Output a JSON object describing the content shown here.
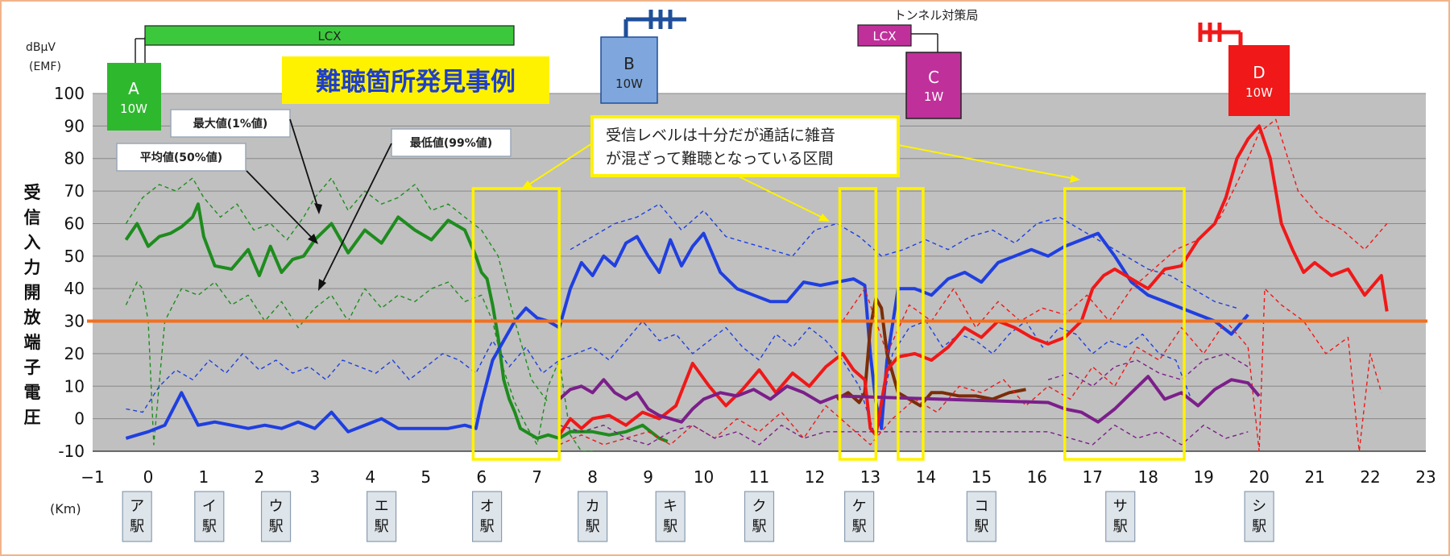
{
  "chart_data": {
    "type": "line",
    "title": "難聴箇所発見事例",
    "y_unit": "dBμV\n(EMF)",
    "ylabel": "受信入力開放端子電圧",
    "x_unit": "(Km)",
    "xlim": [
      -1,
      23
    ],
    "ylim": [
      -10,
      100
    ],
    "x_ticks": [
      -1,
      0,
      1,
      2,
      3,
      4,
      5,
      6,
      7,
      8,
      9,
      10,
      11,
      12,
      13,
      14,
      15,
      16,
      17,
      18,
      19,
      20,
      21,
      22,
      23
    ],
    "y_ticks": [
      -10,
      0,
      10,
      20,
      30,
      40,
      50,
      60,
      70,
      80,
      90,
      100
    ],
    "grid": true,
    "threshold": 30,
    "threshold_color": "#f07020",
    "stations": [
      {
        "name": "ア駅",
        "x": -0.2
      },
      {
        "name": "イ駅",
        "x": 1.1
      },
      {
        "name": "ウ駅",
        "x": 2.3
      },
      {
        "name": "エ駅",
        "x": 4.2
      },
      {
        "name": "オ駅",
        "x": 6.1
      },
      {
        "name": "カ駅",
        "x": 8.0
      },
      {
        "name": "キ駅",
        "x": 9.4
      },
      {
        "name": "ク駅",
        "x": 11.0
      },
      {
        "name": "ケ駅",
        "x": 12.8
      },
      {
        "name": "コ駅",
        "x": 15.0
      },
      {
        "name": "サ駅",
        "x": 17.5
      },
      {
        "name": "シ駅",
        "x": 20.0
      }
    ],
    "base_stations": [
      {
        "name": "A",
        "power": "10W",
        "color": "#2eb82e"
      },
      {
        "name": "B",
        "power": "10W",
        "color": "#7fa7dd"
      },
      {
        "name": "C",
        "power": "1W",
        "color": "#c0309b"
      },
      {
        "name": "D",
        "power": "10W",
        "color": "#f01818"
      }
    ],
    "lcx_labels": [
      "LCX",
      "LCX"
    ],
    "tunnel_label": "トンネル対策局",
    "callouts": {
      "max": "最大値(1%値)",
      "mean": "平均値(50%値)",
      "min": "最低値(99%値)",
      "noise": "受信レベルは十分だが通話に雑音が混ざって難聴となっている区間"
    },
    "highlight_zones": [
      [
        5.85,
        7.4
      ],
      [
        12.45,
        13.1
      ],
      [
        13.5,
        13.95
      ],
      [
        16.5,
        18.65
      ]
    ],
    "series": [
      {
        "station": "A",
        "stat": "mean",
        "color": "#1e8c1e",
        "style": "solid",
        "x": [
          -0.4,
          -0.2,
          0,
          0.2,
          0.4,
          0.6,
          0.8,
          0.9,
          1.0,
          1.2,
          1.5,
          1.8,
          2.0,
          2.2,
          2.4,
          2.6,
          2.8,
          3.0,
          3.3,
          3.6,
          3.9,
          4.2,
          4.5,
          4.8,
          5.1,
          5.4,
          5.7,
          5.9,
          6.0,
          6.1,
          6.2,
          6.3,
          6.4,
          6.5,
          6.6,
          6.7,
          6.8,
          6.9,
          7.0,
          7.2,
          7.4,
          7.6,
          7.8,
          8.0,
          8.3,
          8.6,
          8.9,
          9.2,
          9.35
        ],
        "y": [
          55,
          60,
          53,
          56,
          57,
          59,
          62,
          66,
          56,
          47,
          46,
          52,
          44,
          53,
          45,
          49,
          50,
          55,
          60,
          51,
          58,
          54,
          62,
          58,
          55,
          61,
          58,
          50,
          45,
          43,
          35,
          25,
          12,
          6,
          2,
          -3,
          -4,
          -5,
          -6,
          -5,
          -6,
          -4,
          -4,
          -4,
          -5,
          -4,
          -2,
          -6,
          -7
        ]
      },
      {
        "station": "A",
        "stat": "max",
        "color": "#1e8c1e",
        "style": "dashed",
        "x": [
          -0.4,
          -0.1,
          0.2,
          0.5,
          0.8,
          1.0,
          1.3,
          1.6,
          1.9,
          2.2,
          2.5,
          2.8,
          3.0,
          3.3,
          3.6,
          3.9,
          4.2,
          4.5,
          4.8,
          5.1,
          5.4,
          5.7,
          6.0,
          6.3,
          6.6,
          6.9,
          7.2
        ],
        "y": [
          60,
          68,
          72,
          70,
          74,
          68,
          62,
          66,
          58,
          60,
          55,
          62,
          68,
          74,
          64,
          70,
          66,
          68,
          72,
          64,
          66,
          62,
          58,
          50,
          30,
          12,
          5
        ]
      },
      {
        "station": "A",
        "stat": "min",
        "color": "#1e8c1e",
        "style": "dashed",
        "x": [
          -0.4,
          -0.2,
          -0.1,
          0,
          0.1,
          0.3,
          0.6,
          0.9,
          1.2,
          1.5,
          1.8,
          2.1,
          2.4,
          2.7,
          3.0,
          3.3,
          3.6,
          3.9,
          4.2,
          4.5,
          4.8,
          5.1,
          5.4,
          5.7,
          6.0,
          6.2,
          6.4,
          6.6,
          6.8,
          7.0,
          7.2,
          7.4,
          7.6,
          7.8,
          8.0
        ],
        "y": [
          35,
          42,
          40,
          30,
          -8,
          30,
          40,
          38,
          42,
          35,
          38,
          30,
          36,
          28,
          34,
          38,
          30,
          40,
          34,
          38,
          36,
          40,
          42,
          36,
          38,
          30,
          15,
          5,
          -2,
          -8,
          10,
          18,
          -5,
          -10,
          -10
        ]
      },
      {
        "station": "B",
        "stat": "mean",
        "color": "#1f3fe0",
        "style": "solid",
        "x": [
          -0.4,
          -0.2,
          0,
          0.3,
          0.6,
          0.9,
          1.2,
          1.5,
          1.8,
          2.1,
          2.4,
          2.7,
          3.0,
          3.3,
          3.6,
          3.9,
          4.2,
          4.5,
          4.8,
          5.1,
          5.4,
          5.7,
          5.9,
          6.0,
          6.2,
          6.4,
          6.6,
          6.8,
          7.0,
          7.2,
          7.4,
          7.6,
          7.8,
          8.0,
          8.2,
          8.4,
          8.6,
          8.8,
          9.0,
          9.2,
          9.4,
          9.6,
          9.8,
          10.0,
          10.3,
          10.6,
          10.9,
          11.2,
          11.5,
          11.8,
          12.1,
          12.4,
          12.7,
          12.9,
          13.0,
          13.1,
          13.2,
          13.3,
          13.5,
          13.8,
          14.1,
          14.4,
          14.7,
          15.0,
          15.3,
          15.6,
          15.9,
          16.2,
          16.5,
          16.8,
          17.1,
          17.4,
          17.7,
          18.0,
          18.3,
          18.6,
          18.9,
          19.2,
          19.5,
          19.8
        ],
        "y": [
          -6,
          -5,
          -4,
          -2,
          8,
          -2,
          -1,
          -2,
          -3,
          -2,
          -3,
          -1,
          -3,
          2,
          -4,
          -2,
          0,
          -3,
          -3,
          -3,
          -3,
          -2,
          -3,
          5,
          18,
          24,
          30,
          34,
          31,
          30,
          28,
          40,
          48,
          44,
          50,
          47,
          54,
          56,
          50,
          45,
          55,
          47,
          53,
          57,
          45,
          40,
          38,
          36,
          36,
          42,
          41,
          42,
          43,
          41,
          20,
          5,
          -3,
          18,
          40,
          40,
          38,
          43,
          45,
          42,
          48,
          50,
          52,
          50,
          53,
          55,
          57,
          50,
          42,
          38,
          36,
          34,
          32,
          30,
          26,
          32
        ]
      },
      {
        "station": "B",
        "stat": "max",
        "color": "#1f3fe0",
        "style": "dashed",
        "x": [
          7.6,
          8.0,
          8.4,
          8.8,
          9.2,
          9.6,
          10.0,
          10.4,
          10.8,
          11.2,
          11.6,
          12.0,
          12.4,
          12.8,
          13.2,
          13.6,
          14.0,
          14.4,
          14.8,
          15.2,
          15.6,
          16.0,
          16.4,
          16.8,
          17.2,
          17.6,
          18.0,
          18.4,
          18.8,
          19.2,
          19.6
        ],
        "y": [
          52,
          56,
          60,
          62,
          66,
          58,
          64,
          56,
          54,
          52,
          50,
          58,
          60,
          56,
          50,
          52,
          55,
          52,
          56,
          58,
          54,
          60,
          62,
          58,
          54,
          50,
          46,
          44,
          40,
          36,
          34
        ]
      },
      {
        "station": "B",
        "stat": "min",
        "color": "#1f3fe0",
        "style": "dashed",
        "x": [
          -0.4,
          -0.1,
          0.2,
          0.5,
          0.8,
          1.1,
          1.4,
          1.7,
          2.0,
          2.3,
          2.6,
          2.9,
          3.2,
          3.5,
          3.8,
          4.1,
          4.4,
          4.7,
          5.0,
          5.3,
          5.6,
          5.9,
          6.2,
          6.5,
          6.8,
          7.1,
          7.4,
          7.7,
          8.0,
          8.3,
          8.6,
          8.9,
          9.2,
          9.5,
          9.8,
          10.1,
          10.4,
          10.7,
          11.0,
          11.3,
          11.6,
          11.9,
          12.2,
          12.5,
          12.8,
          13.1,
          13.4,
          13.7,
          14.0,
          14.3,
          14.6,
          14.9,
          15.2,
          15.5,
          15.8,
          16.1,
          16.4,
          16.7,
          17.0,
          17.3,
          17.6,
          17.9,
          18.2,
          18.5,
          18.8
        ],
        "y": [
          3,
          2,
          10,
          15,
          12,
          18,
          14,
          20,
          15,
          18,
          14,
          16,
          12,
          18,
          16,
          14,
          18,
          12,
          16,
          20,
          18,
          14,
          24,
          16,
          22,
          14,
          18,
          20,
          22,
          18,
          24,
          30,
          24,
          26,
          20,
          24,
          28,
          22,
          18,
          26,
          22,
          28,
          24,
          18,
          10,
          -6,
          20,
          28,
          30,
          22,
          26,
          24,
          20,
          26,
          30,
          22,
          28,
          26,
          20,
          24,
          22,
          26,
          20,
          18,
          5
        ]
      },
      {
        "station": "C",
        "stat": "mean",
        "color": "#7b2d08",
        "style": "solid",
        "x": [
          12.4,
          12.6,
          12.8,
          12.9,
          13.0,
          13.1,
          13.2,
          13.3,
          13.5,
          13.7,
          13.9,
          14.1,
          14.3,
          14.6,
          14.9,
          15.2,
          15.5,
          15.8
        ],
        "y": [
          6,
          8,
          5,
          8,
          28,
          37,
          34,
          20,
          8,
          6,
          4,
          8,
          8,
          7,
          7,
          6,
          8,
          9
        ]
      },
      {
        "station": "D",
        "stat": "mean",
        "color": "#f01818",
        "style": "solid",
        "x": [
          7.4,
          7.6,
          7.8,
          8.0,
          8.3,
          8.6,
          8.9,
          9.2,
          9.5,
          9.8,
          10.1,
          10.4,
          10.7,
          11.0,
          11.3,
          11.6,
          11.9,
          12.2,
          12.5,
          12.7,
          12.9,
          13.0,
          13.1,
          13.2,
          13.3,
          13.5,
          13.8,
          14.1,
          14.4,
          14.7,
          15.0,
          15.3,
          15.6,
          15.9,
          16.2,
          16.5,
          16.8,
          17.0,
          17.2,
          17.4,
          17.6,
          17.8,
          18.0,
          18.3,
          18.6,
          18.9,
          19.2,
          19.4,
          19.6,
          19.8,
          20.0,
          20.2,
          20.4,
          20.6,
          20.8,
          21.0,
          21.3,
          21.6,
          21.9,
          22.2,
          22.3
        ],
        "y": [
          -5,
          0,
          -3,
          0,
          1,
          -2,
          2,
          0,
          4,
          17,
          10,
          4,
          9,
          15,
          8,
          14,
          10,
          16,
          20,
          15,
          12,
          -3,
          -5,
          5,
          15,
          19,
          20,
          18,
          22,
          28,
          25,
          30,
          28,
          25,
          23,
          25,
          30,
          40,
          44,
          46,
          44,
          42,
          40,
          46,
          47,
          55,
          60,
          68,
          80,
          86,
          90,
          80,
          60,
          52,
          45,
          48,
          44,
          46,
          38,
          44,
          33
        ]
      },
      {
        "station": "D",
        "stat": "max",
        "color": "#f01818",
        "style": "dashed",
        "x": [
          12.5,
          12.9,
          13.3,
          13.7,
          14.1,
          14.5,
          14.9,
          15.3,
          15.7,
          16.1,
          16.5,
          16.9,
          17.3,
          17.7,
          18.1,
          18.5,
          18.9,
          19.3,
          19.7,
          20.0,
          20.3,
          20.7,
          21.1,
          21.5,
          21.9,
          22.3
        ],
        "y": [
          30,
          40,
          20,
          35,
          30,
          40,
          28,
          36,
          30,
          34,
          32,
          38,
          30,
          40,
          46,
          52,
          55,
          62,
          76,
          88,
          92,
          70,
          62,
          58,
          52,
          60
        ]
      },
      {
        "station": "D",
        "stat": "min",
        "color": "#f01818",
        "style": "dashed",
        "x": [
          7.4,
          7.8,
          8.2,
          8.6,
          9.0,
          9.4,
          9.8,
          10.2,
          10.6,
          11.0,
          11.4,
          11.8,
          12.2,
          12.6,
          13.0,
          13.4,
          13.8,
          14.2,
          14.6,
          15.0,
          15.4,
          15.8,
          16.2,
          16.6,
          17.0,
          17.4,
          17.8,
          18.2,
          18.6,
          19.0,
          19.4,
          19.8,
          20.0,
          20.1,
          20.4,
          20.8,
          21.2,
          21.6,
          21.8,
          22.0,
          22.2
        ],
        "y": [
          -8,
          -5,
          -8,
          -6,
          -4,
          -8,
          -2,
          -6,
          0,
          -4,
          2,
          -6,
          4,
          -2,
          -8,
          0,
          6,
          2,
          10,
          8,
          12,
          4,
          10,
          6,
          16,
          10,
          22,
          18,
          28,
          20,
          30,
          22,
          -10,
          40,
          35,
          30,
          20,
          25,
          -10,
          20,
          8
        ]
      },
      {
        "station": "C",
        "stat": "mean",
        "color": "#7b1f8a",
        "style": "solid",
        "x": [
          7.4,
          7.6,
          7.8,
          8.0,
          8.2,
          8.4,
          8.6,
          8.8,
          9.0,
          9.2,
          9.4,
          9.6,
          9.8,
          10.0,
          10.3,
          10.6,
          10.9,
          11.2,
          11.5,
          11.8,
          12.1,
          12.4,
          16.2,
          16.5,
          16.8,
          17.1,
          17.4,
          17.7,
          18.0,
          18.3,
          18.6,
          18.9,
          19.2,
          19.5,
          19.8,
          20.0
        ],
        "y": [
          6,
          9,
          10,
          8,
          12,
          8,
          6,
          8,
          3,
          1,
          0,
          -1,
          3,
          6,
          8,
          7,
          9,
          6,
          10,
          8,
          5,
          7,
          5,
          3,
          2,
          -1,
          3,
          8,
          13,
          6,
          8,
          4,
          9,
          12,
          11,
          7
        ]
      },
      {
        "station": "C",
        "stat": "max",
        "color": "#7b1f8a",
        "style": "dashed",
        "x": [
          16.2,
          16.6,
          17.0,
          17.4,
          17.8,
          18.2,
          18.6,
          19.0,
          19.4,
          19.8
        ],
        "y": [
          12,
          14,
          10,
          16,
          18,
          14,
          12,
          18,
          20,
          16
        ]
      },
      {
        "station": "C",
        "stat": "min",
        "color": "#7b1f8a",
        "style": "dashed",
        "x": [
          7.4,
          7.8,
          8.2,
          8.6,
          9.0,
          9.4,
          9.8,
          10.2,
          10.6,
          11.0,
          11.4,
          11.8,
          12.2,
          16.2,
          16.6,
          17.0,
          17.4,
          17.8,
          18.2,
          18.6,
          19.0,
          19.4,
          19.8
        ],
        "y": [
          -2,
          -4,
          -2,
          -6,
          -8,
          -4,
          -2,
          -6,
          -4,
          -8,
          -2,
          -6,
          -4,
          -4,
          -6,
          -8,
          -2,
          -6,
          -4,
          -8,
          -2,
          -6,
          -4
        ]
      }
    ]
  }
}
